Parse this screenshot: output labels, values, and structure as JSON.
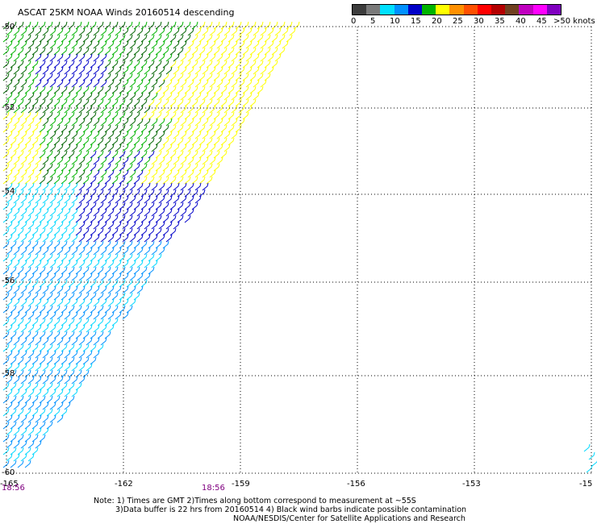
{
  "title": "ASCAT 25KM NOAA Winds 20160514 descending",
  "legend": {
    "labels": [
      "0",
      "5",
      "10",
      "15",
      "20",
      "25",
      "30",
      "35",
      "40",
      "45",
      ">50 knots"
    ],
    "colors": [
      "#3c3c3c",
      "#7a7a7a",
      "#00e0ff",
      "#0090ff",
      "#0000c8",
      "#00b400",
      "#ffff00",
      "#ff9000",
      "#ff5000",
      "#ff0000",
      "#b40000",
      "#704020",
      "#c000c0",
      "#ff00ff",
      "#8000c0"
    ]
  },
  "axes": {
    "lon_labels": [
      "-165",
      "-162",
      "-159",
      "-156",
      "-153",
      "-15"
    ],
    "lat_labels": [
      "-50",
      "-52",
      "-54",
      "-56",
      "-58",
      "-60"
    ]
  },
  "times": [
    "18:56",
    "18:56"
  ],
  "notes": [
    "Note: 1) Times are GMT 2)Times along bottom correspond to measurement at ~55S",
    "3)Data buffer is 22 hrs from 20160514 4) Black wind barbs indicate possible contamination",
    "NOAA/NESDIS/Center for Satellite Applications and Research"
  ],
  "wind_colors": {
    "cyan": "#00d8ff",
    "light_blue": "#0090ff",
    "blue": "#0000c8",
    "green": "#00b400",
    "dark_green": "#006400",
    "yellow": "#ffff00"
  }
}
